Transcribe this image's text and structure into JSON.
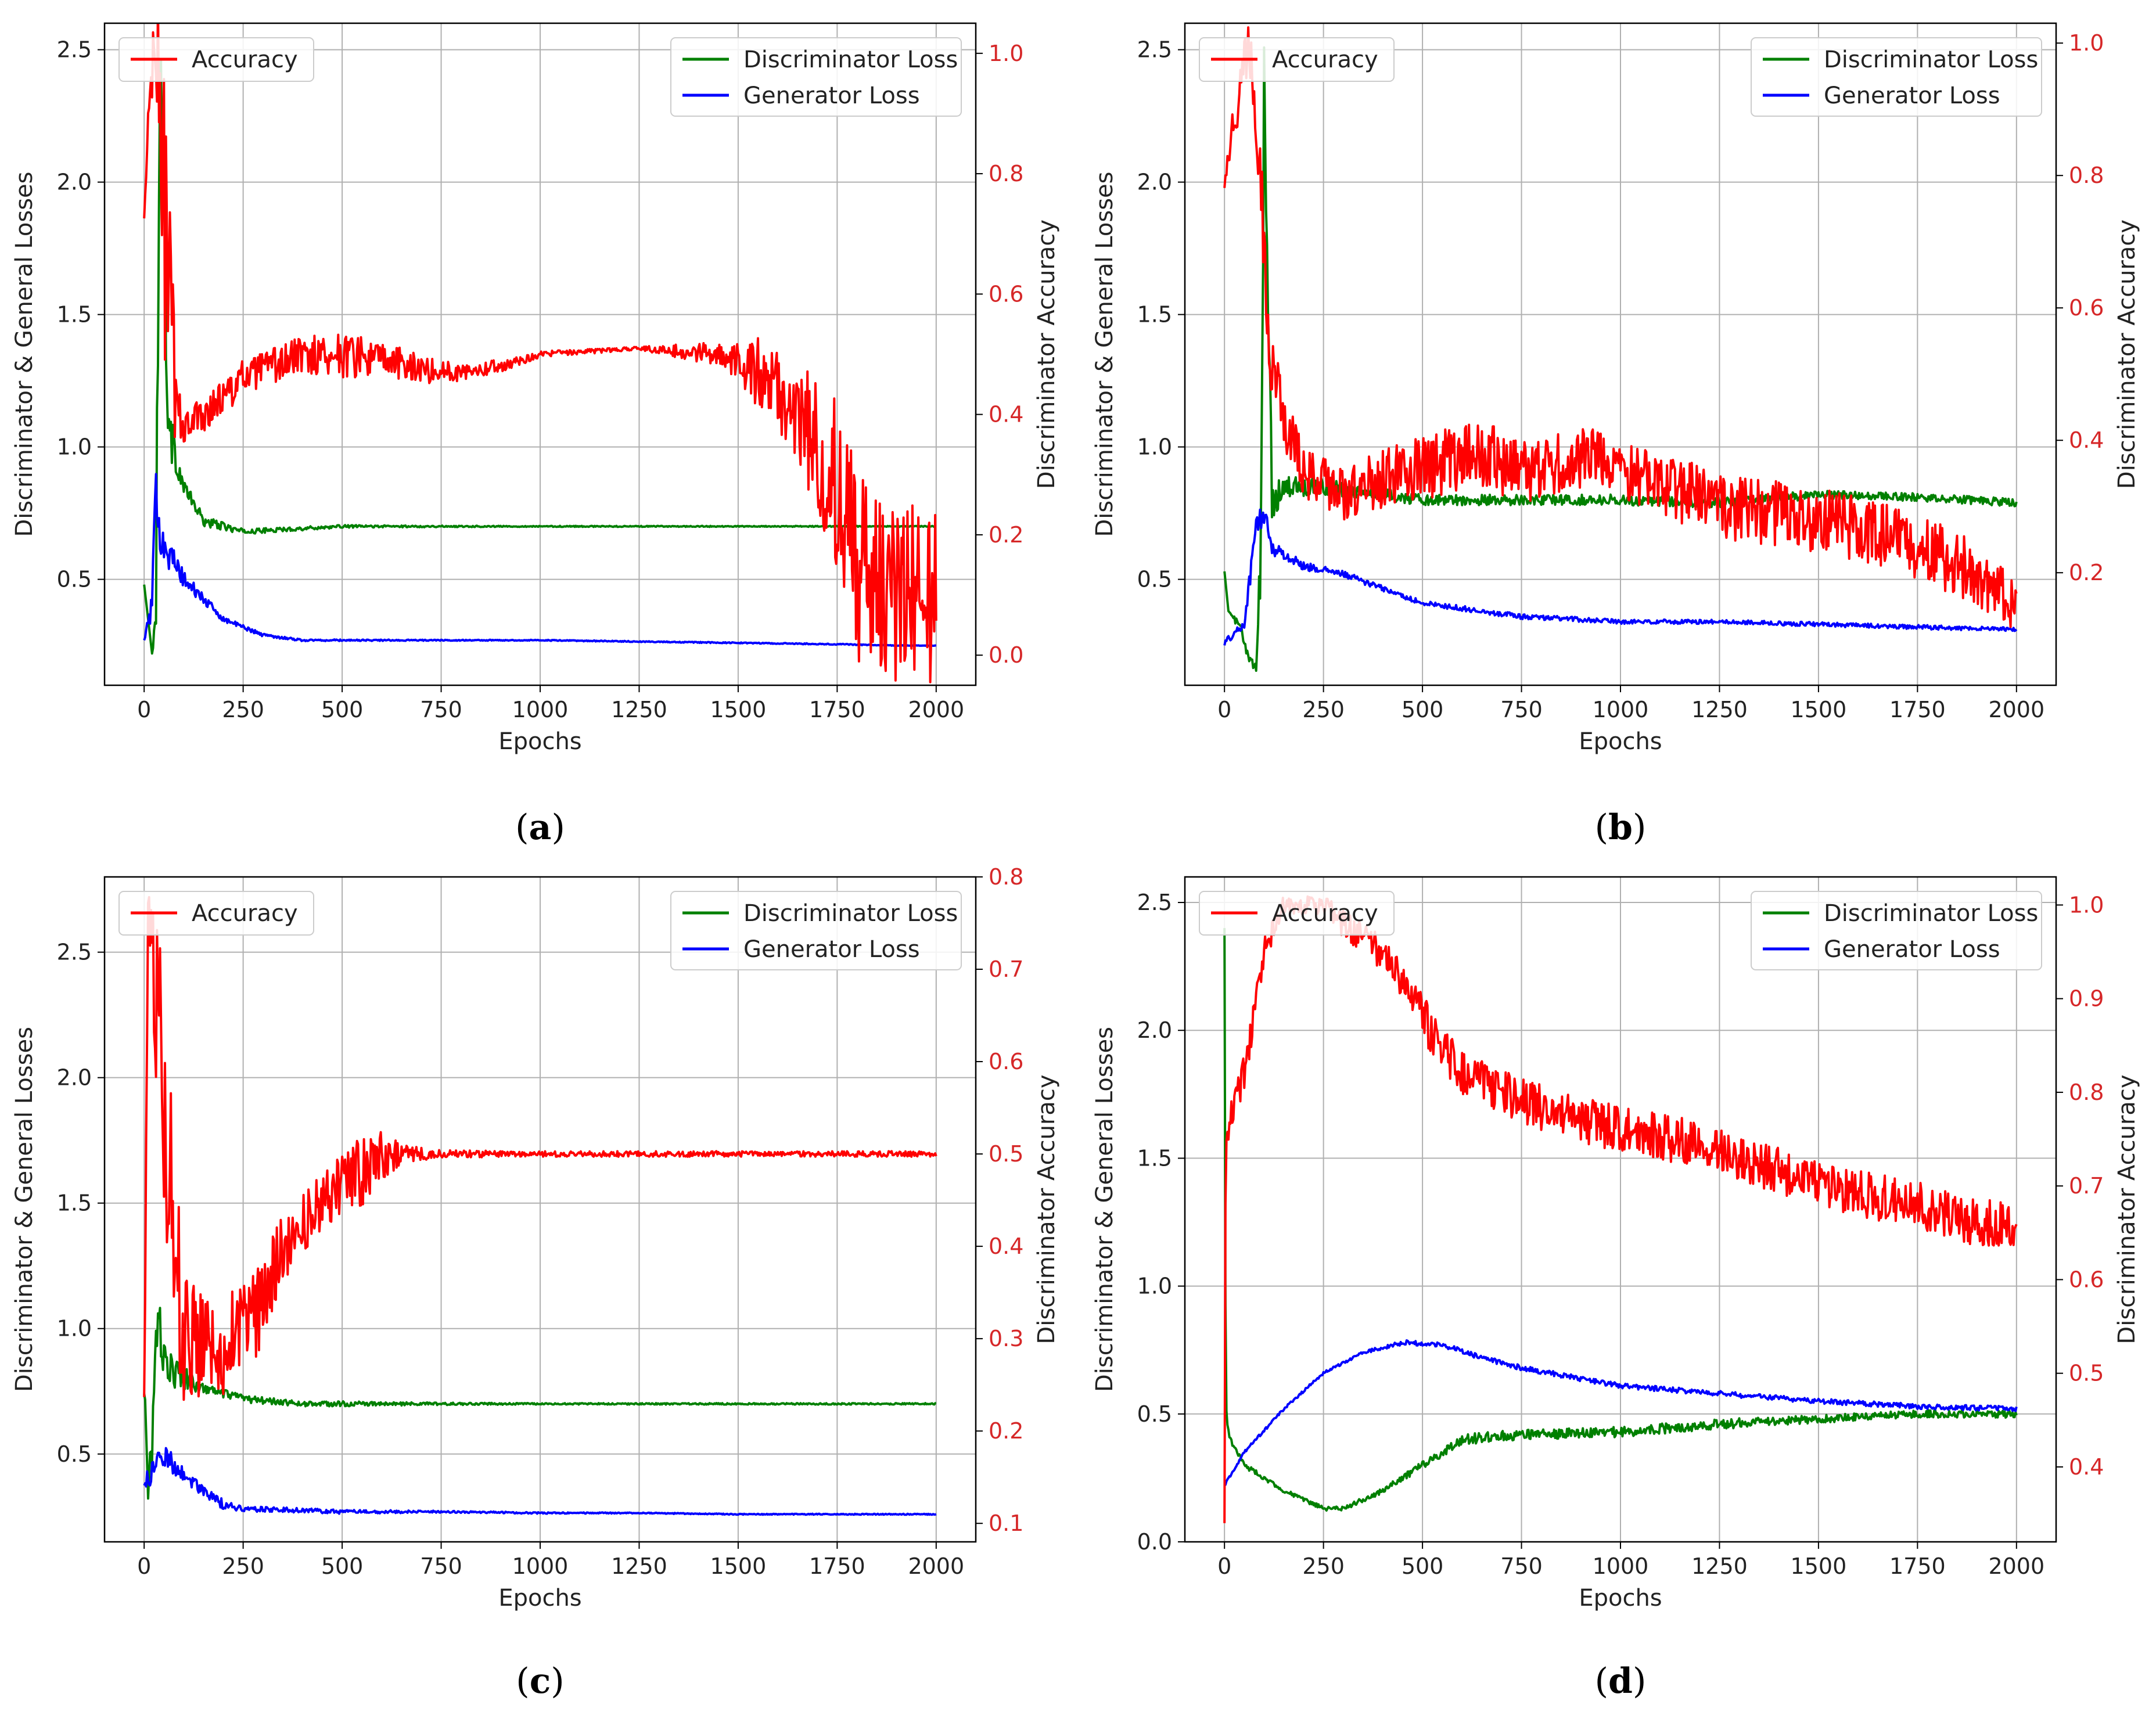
{
  "figure": {
    "captions": [
      "a",
      "b",
      "c",
      "d"
    ]
  },
  "colors": {
    "accuracy": "#ff0000",
    "discriminator_loss": "#008000",
    "generator_loss": "#0000ff",
    "grid": "#b0b0b0",
    "right_axis": "#d62728"
  },
  "chart_data": [
    {
      "id": "a",
      "type": "line",
      "xlabel": "Epochs",
      "ylabel": "Discriminator & General Losses",
      "y2label": "Discriminator Accuracy",
      "xlim": [
        -100,
        2100
      ],
      "ylim": [
        0.1,
        2.6
      ],
      "y2lim": [
        -0.05,
        1.05
      ],
      "xticks": [
        0,
        250,
        500,
        750,
        1000,
        1250,
        1500,
        1750,
        2000
      ],
      "yticks": [
        0.5,
        1.0,
        1.5,
        2.0,
        2.5
      ],
      "y2ticks": [
        0.0,
        0.2,
        0.4,
        0.6,
        0.8,
        1.0
      ],
      "legend_left": [
        "Accuracy"
      ],
      "legend_right": [
        "Discriminator Loss",
        "Generator Loss"
      ],
      "grid": true,
      "series": [
        {
          "name": "Discriminator Loss",
          "axis": "left",
          "x": [
            0,
            10,
            20,
            30,
            40,
            50,
            60,
            80,
            100,
            150,
            250,
            500,
            750,
            1000,
            1250,
            1500,
            1750,
            2000
          ],
          "y": [
            0.48,
            0.35,
            0.22,
            0.5,
            2.4,
            2.0,
            1.1,
            0.95,
            0.85,
            0.72,
            0.68,
            0.7,
            0.7,
            0.7,
            0.7,
            0.7,
            0.7,
            0.7
          ],
          "noise": [
            0,
            0,
            0,
            0.2,
            0.3,
            0.3,
            0.15,
            0.05,
            0.03,
            0.02,
            0.01,
            0.005,
            0.003,
            0.002,
            0.002,
            0.002,
            0.002,
            0.002
          ]
        },
        {
          "name": "Generator Loss",
          "axis": "left",
          "x": [
            0,
            20,
            30,
            40,
            60,
            100,
            200,
            300,
            400,
            500,
            750,
            1000,
            1250,
            1500,
            1750,
            1900,
            2000
          ],
          "y": [
            0.27,
            0.4,
            0.86,
            0.7,
            0.6,
            0.5,
            0.35,
            0.29,
            0.27,
            0.27,
            0.27,
            0.27,
            0.265,
            0.26,
            0.255,
            0.25,
            0.25
          ],
          "noise": [
            0,
            0.05,
            0.1,
            0.1,
            0.07,
            0.03,
            0.01,
            0.006,
            0.004,
            0.003,
            0.002,
            0.002,
            0.002,
            0.002,
            0.002,
            0.001,
            0.001
          ]
        },
        {
          "name": "Accuracy",
          "axis": "right",
          "x": [
            0,
            15,
            30,
            45,
            60,
            80,
            100,
            150,
            250,
            400,
            500,
            600,
            750,
            900,
            1000,
            1250,
            1450,
            1550,
            1650,
            1700,
            1750,
            1800,
            1900,
            2000
          ],
          "y": [
            0.72,
            0.95,
            1.0,
            0.85,
            0.6,
            0.42,
            0.38,
            0.4,
            0.46,
            0.5,
            0.5,
            0.49,
            0.47,
            0.48,
            0.5,
            0.51,
            0.5,
            0.47,
            0.4,
            0.35,
            0.28,
            0.15,
            0.1,
            0.1
          ],
          "noise": [
            0.02,
            0.05,
            0.08,
            0.25,
            0.3,
            0.06,
            0.03,
            0.03,
            0.03,
            0.03,
            0.04,
            0.03,
            0.02,
            0.01,
            0.005,
            0.003,
            0.02,
            0.06,
            0.08,
            0.12,
            0.15,
            0.16,
            0.15,
            0.15
          ]
        }
      ]
    },
    {
      "id": "b",
      "type": "line",
      "xlabel": "Epochs",
      "ylabel": "Discriminator & General Losses",
      "y2label": "Discriminator Accuracy",
      "xlim": [
        -100,
        2100
      ],
      "ylim": [
        0.1,
        2.6
      ],
      "y2lim": [
        0.03,
        1.03
      ],
      "xticks": [
        0,
        250,
        500,
        750,
        1000,
        1250,
        1500,
        1750,
        2000
      ],
      "yticks": [
        0.5,
        1.0,
        1.5,
        2.0,
        2.5
      ],
      "y2ticks": [
        0.2,
        0.4,
        0.6,
        0.8,
        1.0
      ],
      "legend_left": [
        "Accuracy"
      ],
      "legend_right": [
        "Discriminator Loss",
        "Generator Loss"
      ],
      "grid": true,
      "series": [
        {
          "name": "Discriminator Loss",
          "axis": "left",
          "x": [
            0,
            10,
            40,
            60,
            80,
            90,
            100,
            120,
            150,
            250,
            500,
            750,
            1000,
            1250,
            1500,
            1750,
            2000
          ],
          "y": [
            0.53,
            0.38,
            0.32,
            0.2,
            0.16,
            0.5,
            2.4,
            0.8,
            0.85,
            0.85,
            0.8,
            0.8,
            0.8,
            0.79,
            0.82,
            0.81,
            0.79
          ],
          "noise": [
            0,
            0,
            0.02,
            0.02,
            0.02,
            0.2,
            0.3,
            0.08,
            0.04,
            0.03,
            0.02,
            0.02,
            0.02,
            0.02,
            0.015,
            0.015,
            0.015
          ]
        },
        {
          "name": "Generator Loss",
          "axis": "left",
          "x": [
            0,
            50,
            80,
            100,
            120,
            200,
            300,
            500,
            750,
            1000,
            1250,
            1500,
            1750,
            2000
          ],
          "y": [
            0.26,
            0.33,
            0.7,
            0.75,
            0.62,
            0.55,
            0.52,
            0.41,
            0.36,
            0.34,
            0.34,
            0.33,
            0.32,
            0.31
          ],
          "noise": [
            0.01,
            0.02,
            0.05,
            0.05,
            0.03,
            0.015,
            0.012,
            0.01,
            0.01,
            0.008,
            0.008,
            0.008,
            0.008,
            0.008
          ]
        },
        {
          "name": "Accuracy",
          "axis": "right",
          "x": [
            0,
            30,
            60,
            90,
            110,
            140,
            200,
            300,
            500,
            650,
            750,
            900,
            1000,
            1250,
            1500,
            1750,
            1900,
            2000
          ],
          "y": [
            0.8,
            0.9,
            1.0,
            0.85,
            0.55,
            0.45,
            0.35,
            0.32,
            0.36,
            0.38,
            0.35,
            0.37,
            0.36,
            0.3,
            0.28,
            0.24,
            0.2,
            0.15
          ],
          "noise": [
            0.02,
            0.04,
            0.04,
            0.08,
            0.08,
            0.05,
            0.04,
            0.04,
            0.05,
            0.05,
            0.05,
            0.05,
            0.05,
            0.05,
            0.05,
            0.05,
            0.05,
            0.04
          ]
        }
      ]
    },
    {
      "id": "c",
      "type": "line",
      "xlabel": "Epochs",
      "ylabel": "Discriminator & General Losses",
      "y2label": "Discriminator Accuracy",
      "xlim": [
        -100,
        2100
      ],
      "ylim": [
        0.15,
        2.8
      ],
      "y2lim": [
        0.08,
        0.8
      ],
      "xticks": [
        0,
        250,
        500,
        750,
        1000,
        1250,
        1500,
        1750,
        2000
      ],
      "yticks": [
        0.5,
        1.0,
        1.5,
        2.0,
        2.5
      ],
      "y2ticks": [
        0.1,
        0.2,
        0.3,
        0.4,
        0.5,
        0.6,
        0.7,
        0.8
      ],
      "legend_left": [
        "Accuracy"
      ],
      "legend_right": [
        "Discriminator Loss",
        "Generator Loss"
      ],
      "grid": true,
      "series": [
        {
          "name": "Discriminator Loss",
          "axis": "left",
          "x": [
            0,
            10,
            20,
            30,
            40,
            60,
            100,
            150,
            250,
            400,
            500,
            750,
            1000,
            1250,
            1500,
            1750,
            2000
          ],
          "y": [
            0.75,
            0.4,
            0.5,
            0.9,
            1.0,
            0.85,
            0.8,
            0.76,
            0.72,
            0.7,
            0.7,
            0.7,
            0.7,
            0.7,
            0.7,
            0.7,
            0.7
          ],
          "noise": [
            0.05,
            0.1,
            0.1,
            0.15,
            0.15,
            0.08,
            0.05,
            0.02,
            0.015,
            0.01,
            0.01,
            0.005,
            0.003,
            0.003,
            0.003,
            0.003,
            0.003
          ]
        },
        {
          "name": "Generator Loss",
          "axis": "left",
          "x": [
            0,
            20,
            40,
            60,
            100,
            150,
            200,
            250,
            300,
            500,
            750,
            1000,
            1250,
            1500,
            1750,
            2000
          ],
          "y": [
            0.38,
            0.42,
            0.5,
            0.48,
            0.42,
            0.35,
            0.3,
            0.28,
            0.28,
            0.27,
            0.27,
            0.265,
            0.265,
            0.26,
            0.26,
            0.26
          ],
          "noise": [
            0.03,
            0.05,
            0.05,
            0.05,
            0.03,
            0.02,
            0.02,
            0.01,
            0.01,
            0.008,
            0.004,
            0.003,
            0.002,
            0.002,
            0.002,
            0.002
          ]
        },
        {
          "name": "Accuracy",
          "axis": "right",
          "x": [
            0,
            10,
            30,
            60,
            100,
            150,
            200,
            280,
            350,
            450,
            550,
            600,
            650,
            750,
            1000,
            1250,
            1500,
            1750,
            2000
          ],
          "y": [
            0.24,
            0.75,
            0.68,
            0.5,
            0.3,
            0.3,
            0.3,
            0.32,
            0.4,
            0.45,
            0.48,
            0.5,
            0.5,
            0.5,
            0.5,
            0.5,
            0.5,
            0.5,
            0.5
          ],
          "noise": [
            0.02,
            0.04,
            0.1,
            0.12,
            0.08,
            0.06,
            0.06,
            0.05,
            0.04,
            0.03,
            0.04,
            0.03,
            0.01,
            0.004,
            0.003,
            0.003,
            0.003,
            0.003,
            0.003
          ]
        }
      ]
    },
    {
      "id": "d",
      "type": "line",
      "xlabel": "Epochs",
      "ylabel": "Discriminator & General Losses",
      "y2label": "Discriminator Accuracy",
      "xlim": [
        -100,
        2100
      ],
      "ylim": [
        0.0,
        2.6
      ],
      "y2lim": [
        0.32,
        1.03
      ],
      "xticks": [
        0,
        250,
        500,
        750,
        1000,
        1250,
        1500,
        1750,
        2000
      ],
      "yticks": [
        0.0,
        0.5,
        1.0,
        1.5,
        2.0,
        2.5
      ],
      "y2ticks": [
        0.4,
        0.5,
        0.6,
        0.7,
        0.8,
        0.9,
        1.0
      ],
      "legend_left": [
        "Accuracy"
      ],
      "legend_right": [
        "Discriminator Loss",
        "Generator Loss"
      ],
      "grid": true,
      "series": [
        {
          "name": "Discriminator Loss",
          "axis": "left",
          "x": [
            0,
            3,
            8,
            15,
            50,
            150,
            250,
            300,
            400,
            500,
            600,
            750,
            1000,
            1250,
            1500,
            1750,
            2000
          ],
          "y": [
            2.4,
            0.6,
            0.45,
            0.4,
            0.3,
            0.2,
            0.13,
            0.13,
            0.2,
            0.3,
            0.4,
            0.42,
            0.43,
            0.46,
            0.48,
            0.5,
            0.5
          ],
          "noise": [
            0,
            0.1,
            0.02,
            0.01,
            0.01,
            0.008,
            0.008,
            0.008,
            0.01,
            0.015,
            0.02,
            0.02,
            0.02,
            0.02,
            0.015,
            0.015,
            0.015
          ]
        },
        {
          "name": "Generator Loss",
          "axis": "left",
          "x": [
            0,
            50,
            150,
            250,
            350,
            450,
            550,
            650,
            750,
            1000,
            1250,
            1500,
            1750,
            2000
          ],
          "y": [
            0.22,
            0.35,
            0.52,
            0.66,
            0.74,
            0.78,
            0.77,
            0.72,
            0.68,
            0.61,
            0.58,
            0.55,
            0.53,
            0.52
          ],
          "noise": [
            0.005,
            0.005,
            0.005,
            0.005,
            0.005,
            0.01,
            0.01,
            0.01,
            0.01,
            0.01,
            0.01,
            0.01,
            0.01,
            0.01
          ]
        },
        {
          "name": "Accuracy",
          "axis": "right",
          "x": [
            0,
            3,
            10,
            50,
            100,
            150,
            200,
            250,
            300,
            400,
            500,
            600,
            750,
            900,
            1000,
            1250,
            1500,
            1750,
            1900,
            2000
          ],
          "y": [
            0.34,
            0.74,
            0.76,
            0.82,
            0.95,
            1.0,
            1.0,
            1.0,
            0.98,
            0.95,
            0.88,
            0.82,
            0.79,
            0.77,
            0.76,
            0.74,
            0.7,
            0.68,
            0.66,
            0.66
          ],
          "noise": [
            0,
            0.02,
            0.02,
            0.02,
            0.015,
            0.01,
            0.01,
            0.01,
            0.015,
            0.02,
            0.025,
            0.025,
            0.025,
            0.025,
            0.025,
            0.025,
            0.025,
            0.025,
            0.025,
            0.025
          ]
        }
      ]
    }
  ]
}
